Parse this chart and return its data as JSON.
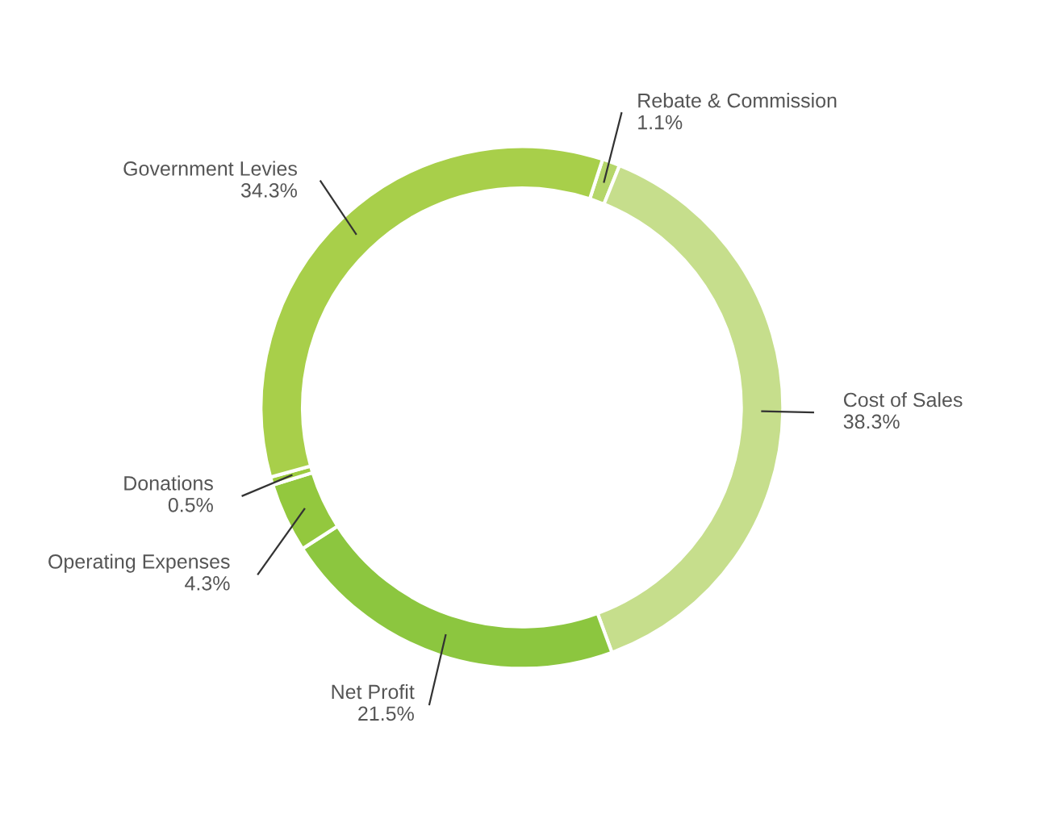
{
  "chart_data": {
    "type": "donut",
    "categories": [
      "Rebate & Commission",
      "Cost of Sales",
      "Net Profit",
      "Operating Expenses",
      "Donations",
      "Government Levies"
    ],
    "values": [
      1.1,
      38.3,
      21.5,
      4.3,
      0.5,
      34.3
    ],
    "value_labels": [
      "1.1%",
      "38.3%",
      "21.5%",
      "4.3%",
      "0.5%",
      "34.3%"
    ],
    "colors": [
      "#b5d66a",
      "#c6de8c",
      "#8cc63f",
      "#93c83e",
      "#9ccb3f",
      "#a8cf4a"
    ]
  }
}
